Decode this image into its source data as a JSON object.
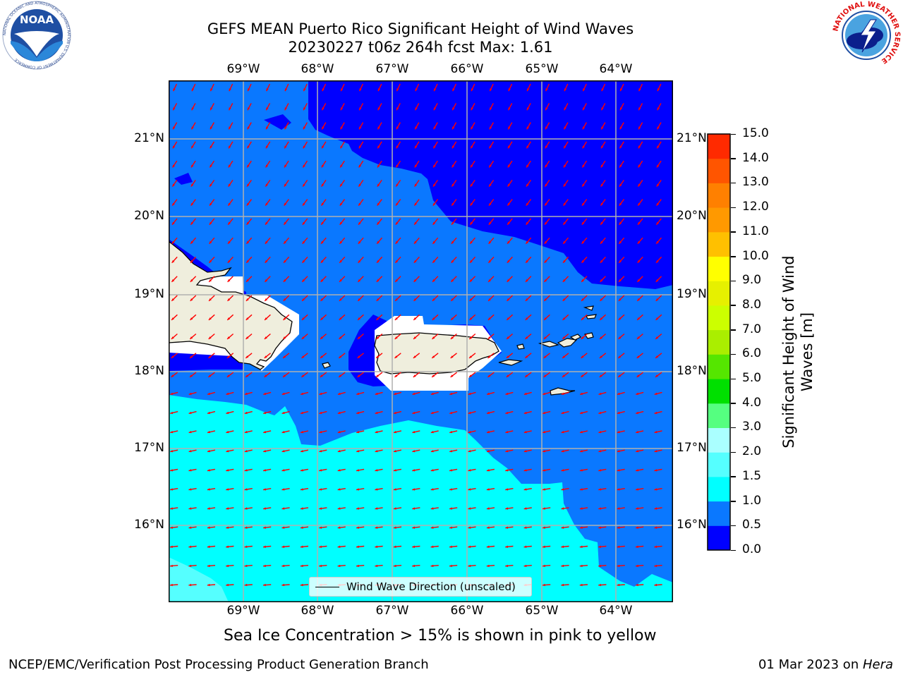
{
  "title": {
    "line1": "GEFS MEAN Puerto Rico Significant Height of Wind Waves",
    "line2": "20230227 t06z 264h fcst   Max: 1.61"
  },
  "logos": {
    "noaa_text": "NOAA",
    "noaa_ring": "NATIONAL OCEANIC AND ATMOSPHERIC ADMINISTRATION U.S. DEPARTMENT OF COMMERCE",
    "nws_ring": "NATIONAL WEATHER SERVICE"
  },
  "map": {
    "lon_labels": [
      "69°W",
      "68°W",
      "67°W",
      "66°W",
      "65°W",
      "64°W"
    ],
    "lat_labels": [
      "21°N",
      "20°N",
      "19°N",
      "18°N",
      "17°N",
      "16°N"
    ],
    "legend_label": "Wind Wave Direction (unscaled)",
    "colors": {
      "land": "#efeedd",
      "deep_blue": "#0000ff",
      "mid_blue": "#0a78ff",
      "cyan": "#00ffff",
      "light_cyan": "#55ffff",
      "arrow": "#ff0000",
      "grid": "#b0b0b0"
    }
  },
  "colorbar": {
    "label": "Significant Height of Wind Waves [m]",
    "ticks": [
      "15.0",
      "14.0",
      "13.0",
      "12.0",
      "11.0",
      "10.0",
      "9.0",
      "8.0",
      "7.0",
      "6.0",
      "5.0",
      "4.0",
      "3.0",
      "2.0",
      "1.5",
      "1.0",
      "0.5",
      "0.0"
    ],
    "colors": [
      "#0000ff",
      "#0a78ff",
      "#00ffff",
      "#55ffff",
      "#aaffff",
      "#55ff80",
      "#00e000",
      "#55e600",
      "#aaee00",
      "#ccff00",
      "#e6f000",
      "#ffff00",
      "#ffc000",
      "#ff9900",
      "#ff8000",
      "#ff5500",
      "#ff2a00",
      "#ff0000"
    ]
  },
  "caption": "Sea Ice Concentration > 15% is shown in pink to yellow",
  "footer": {
    "left": "NCEP/EMC/Verification Post Processing Product Generation Branch",
    "right_prefix": "01 Mar 2023 on ",
    "right_host": "Hera"
  }
}
